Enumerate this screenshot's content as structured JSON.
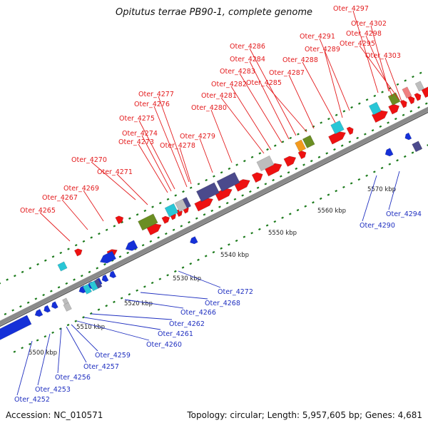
{
  "title": "Opitutus terrae PB90-1, complete genome",
  "footer": {
    "accession": "Accession: NC_010571",
    "summary": "Topology: circular; Length: 5,957,605 bp; Genes: 4,681"
  },
  "colors": {
    "forward_label": "#e31a1c",
    "reverse_label": "#1f2fc0",
    "backbone": "#8a8a8a",
    "tick": "#1b7a1b",
    "gene_forward": "#ee1111",
    "gene_reverse": "#1530d8",
    "rna_cyan": "#29c6d6",
    "gene_olive": "#6b8e23",
    "gene_slate": "#4b4a8c",
    "gene_gray": "#bdbdbd",
    "gene_orange": "#f39a1e",
    "gene_pink": "#f08080"
  },
  "scale_labels": [
    "5500 kbp",
    "5510 kbp",
    "5520 kbp",
    "5530 kbp",
    "5540 kbp",
    "5550 kbp",
    "5560 kbp",
    "5570 kbp"
  ],
  "forward_labels": [
    "Oter_4297",
    "Oter_4302",
    "Oter_4298",
    "Oter_4295",
    "Oter_4303",
    "Oter_4291",
    "Oter_4289",
    "Oter_4288",
    "Oter_4286",
    "Oter_4284",
    "Oter_4287",
    "Oter_4283",
    "Oter_4285",
    "Oter_4282",
    "Oter_4281",
    "Oter_4280",
    "Oter_4277",
    "Oter_4276",
    "Oter_4275",
    "Oter_4274",
    "Oter_4273",
    "Oter_4279",
    "Oter_4278",
    "Oter_4270",
    "Oter_4271",
    "Oter_4269",
    "Oter_4267",
    "Oter_4265"
  ],
  "reverse_labels": [
    "Oter_4294",
    "Oter_4290",
    "Oter_4272",
    "Oter_4268",
    "Oter_4266",
    "Oter_4262",
    "Oter_4261",
    "Oter_4260",
    "Oter_4259",
    "Oter_4257",
    "Oter_4256",
    "Oter_4253",
    "Oter_4252"
  ]
}
